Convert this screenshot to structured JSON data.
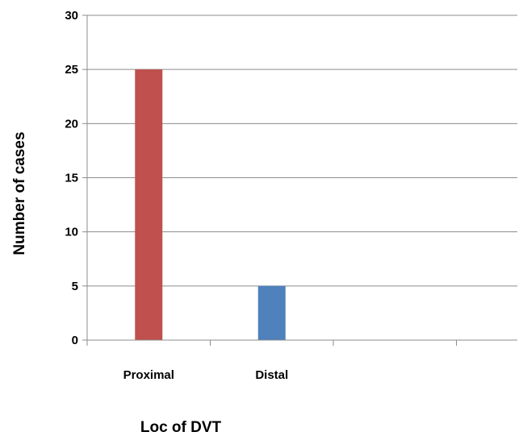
{
  "chart_data": {
    "type": "bar",
    "title": "",
    "xlabel": "Loc of DVT",
    "ylabel": "Number of cases",
    "categories": [
      "Proximal",
      "Distal",
      "",
      ""
    ],
    "values": [
      25,
      5,
      null,
      null
    ],
    "bar_colors": [
      "#c0504d",
      "#4f81bd"
    ],
    "ylim": [
      0,
      30
    ],
    "yticks": [
      "0",
      "5",
      "10",
      "15",
      "20",
      "25",
      "30"
    ],
    "grid": true,
    "legend": "none"
  }
}
